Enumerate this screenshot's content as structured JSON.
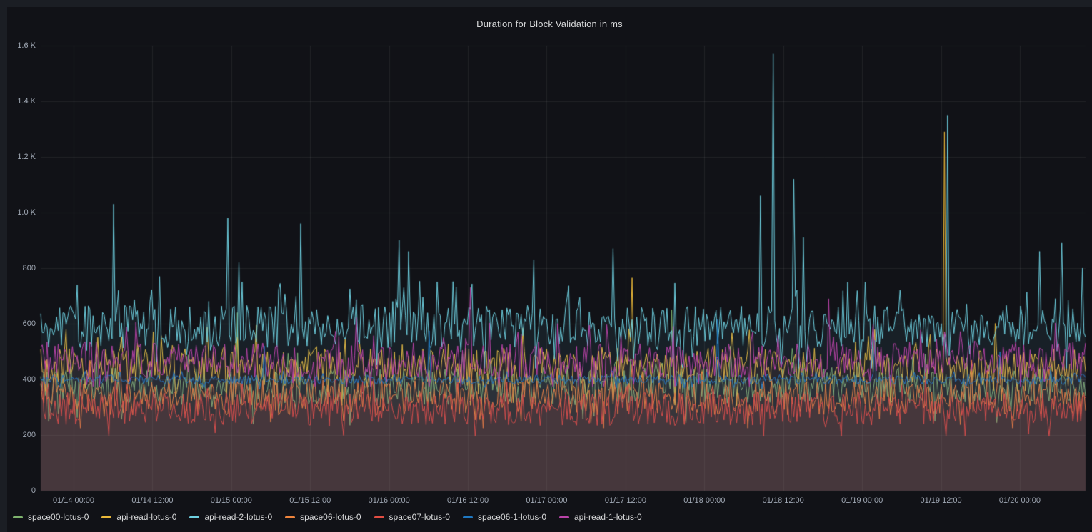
{
  "panel": {
    "title": "Duration for Block Validation in ms"
  },
  "colors": {
    "page_bg": "#1b1e24",
    "panel_bg": "#111217",
    "grid": "rgba(255,255,255,0.07)",
    "title_text": "#d8d9da",
    "tick_text": "#9fa7b3",
    "legend_text": "#d8d9da"
  },
  "chart_data": {
    "type": "line",
    "title": "Duration for Block Validation in ms",
    "xlabel": "",
    "ylabel": "",
    "ylim": [
      0,
      1600
    ],
    "grid": true,
    "legend_position": "bottom",
    "x_domain_hours": 159,
    "x_domain_note": "time axis spans approx 01/13 19:00 to 01/20 10:00, ticks every 12h",
    "y_ticks": [
      {
        "v": 0,
        "label": "0"
      },
      {
        "v": 200,
        "label": "200"
      },
      {
        "v": 400,
        "label": "400"
      },
      {
        "v": 600,
        "label": "600"
      },
      {
        "v": 800,
        "label": "800"
      },
      {
        "v": 1000,
        "label": "1.0 K"
      },
      {
        "v": 1200,
        "label": "1.2 K"
      },
      {
        "v": 1400,
        "label": "1.4 K"
      },
      {
        "v": 1600,
        "label": "1.6 K"
      }
    ],
    "x_ticks": [
      {
        "h": 5,
        "label": "01/14 00:00"
      },
      {
        "h": 17,
        "label": "01/14 12:00"
      },
      {
        "h": 29,
        "label": "01/15 00:00"
      },
      {
        "h": 41,
        "label": "01/15 12:00"
      },
      {
        "h": 53,
        "label": "01/16 00:00"
      },
      {
        "h": 65,
        "label": "01/16 12:00"
      },
      {
        "h": 77,
        "label": "01/17 00:00"
      },
      {
        "h": 89,
        "label": "01/17 12:00"
      },
      {
        "h": 101,
        "label": "01/18 00:00"
      },
      {
        "h": 113,
        "label": "01/18 12:00"
      },
      {
        "h": 125,
        "label": "01/19 00:00"
      },
      {
        "h": 137,
        "label": "01/19 12:00"
      },
      {
        "h": 149,
        "label": "01/20 00:00"
      }
    ],
    "series": [
      {
        "name": "space00-lotus-0",
        "color": "#7EB26D",
        "seed": 101,
        "base": 375,
        "amp": 80,
        "min": 235,
        "fill_alpha": 0.05,
        "spikes": [
          {
            "h": 30,
            "v": 640
          },
          {
            "h": 96,
            "v": 650
          }
        ]
      },
      {
        "name": "api-read-lotus-0",
        "color": "#EAB839",
        "seed": 202,
        "base": 445,
        "amp": 80,
        "min": 305,
        "fill_alpha": 0.05,
        "spikes": [
          {
            "h": 90,
            "v": 765
          },
          {
            "h": 137.6,
            "v": 1290
          }
        ]
      },
      {
        "name": "api-read-2-lotus-0",
        "color": "#6ED0E0",
        "seed": 303,
        "base": 590,
        "amp": 90,
        "min": 440,
        "fill_alpha": 0.08,
        "spikes": [
          {
            "h": 11,
            "v": 1030
          },
          {
            "h": 18,
            "v": 770
          },
          {
            "h": 28.5,
            "v": 980
          },
          {
            "h": 30.2,
            "v": 820
          },
          {
            "h": 39.5,
            "v": 960
          },
          {
            "h": 54.5,
            "v": 900
          },
          {
            "h": 56,
            "v": 860
          },
          {
            "h": 75,
            "v": 830
          },
          {
            "h": 87,
            "v": 870
          },
          {
            "h": 109.5,
            "v": 1060
          },
          {
            "h": 111.5,
            "v": 1570
          },
          {
            "h": 114.5,
            "v": 1120
          },
          {
            "h": 116,
            "v": 910
          },
          {
            "h": 138,
            "v": 1350
          },
          {
            "h": 152,
            "v": 860
          },
          {
            "h": 155.5,
            "v": 890
          },
          {
            "h": 158.5,
            "v": 800
          }
        ]
      },
      {
        "name": "space06-lotus-0",
        "color": "#EF843C",
        "seed": 404,
        "base": 335,
        "amp": 75,
        "min": 225,
        "fill_alpha": 0.06,
        "spikes": []
      },
      {
        "name": "space07-lotus-0",
        "color": "#E24D42",
        "seed": 505,
        "base": 295,
        "amp": 72,
        "min": 196,
        "fill_alpha": 0.1,
        "spikes": []
      },
      {
        "name": "space06-1-lotus-0",
        "color": "#1F78C1",
        "seed": 606,
        "base": 400,
        "amp": 20,
        "min": 362,
        "fill_alpha": 0.05,
        "spikes": [
          {
            "h": 34,
            "v": 520
          },
          {
            "h": 59,
            "v": 575
          },
          {
            "h": 103,
            "v": 615
          },
          {
            "h": 127,
            "v": 540
          },
          {
            "h": 146,
            "v": 500
          }
        ]
      },
      {
        "name": "api-read-1-lotus-0",
        "color": "#BA43A9",
        "seed": 707,
        "base": 470,
        "amp": 78,
        "min": 375,
        "fill_alpha": 0.05,
        "spikes": [
          {
            "h": 65.5,
            "v": 730
          },
          {
            "h": 120,
            "v": 690
          }
        ]
      }
    ]
  }
}
